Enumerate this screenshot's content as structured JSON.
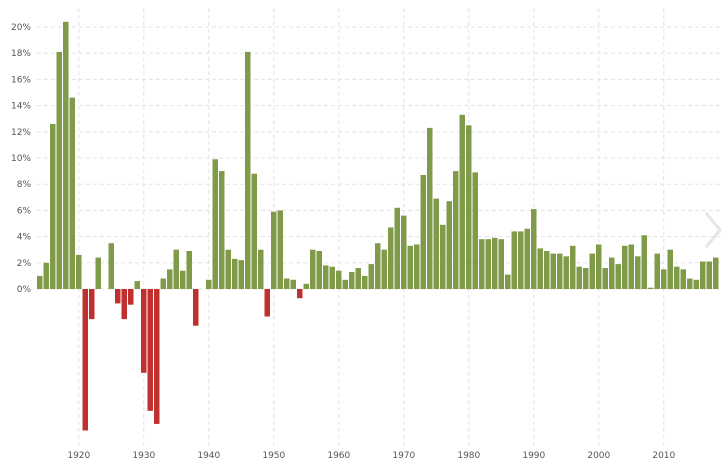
{
  "chart_data": {
    "type": "bar",
    "title": "",
    "xlabel": "",
    "ylabel": "",
    "x_start_year": 1914,
    "x": [
      1914,
      1915,
      1916,
      1917,
      1918,
      1919,
      1920,
      1921,
      1922,
      1923,
      1924,
      1925,
      1926,
      1927,
      1928,
      1929,
      1930,
      1931,
      1932,
      1933,
      1934,
      1935,
      1936,
      1937,
      1938,
      1939,
      1940,
      1941,
      1942,
      1943,
      1944,
      1945,
      1946,
      1947,
      1948,
      1949,
      1950,
      1951,
      1952,
      1953,
      1954,
      1955,
      1956,
      1957,
      1958,
      1959,
      1960,
      1961,
      1962,
      1963,
      1964,
      1965,
      1966,
      1967,
      1968,
      1969,
      1970,
      1971,
      1972,
      1973,
      1974,
      1975,
      1976,
      1977,
      1978,
      1979,
      1980,
      1981,
      1982,
      1983,
      1984,
      1985,
      1986,
      1987,
      1988,
      1989,
      1990,
      1991,
      1992,
      1993,
      1994,
      1995,
      1996,
      1997,
      1998,
      1999,
      2000,
      2001,
      2002,
      2003,
      2004,
      2005,
      2006,
      2007,
      2008,
      2009,
      2010,
      2011,
      2012,
      2013,
      2014,
      2015,
      2016,
      2017,
      2018
    ],
    "values": [
      1.0,
      2.0,
      12.6,
      18.1,
      20.4,
      14.6,
      2.6,
      -10.8,
      -2.3,
      2.4,
      0.0,
      3.5,
      -1.1,
      -2.3,
      -1.2,
      0.6,
      -6.4,
      -9.3,
      -10.3,
      0.8,
      1.5,
      3.0,
      1.4,
      2.9,
      -2.8,
      0.0,
      0.7,
      9.9,
      9.0,
      3.0,
      2.3,
      2.2,
      18.1,
      8.8,
      3.0,
      -2.1,
      5.9,
      6.0,
      0.8,
      0.7,
      -0.7,
      0.4,
      3.0,
      2.9,
      1.8,
      1.7,
      1.4,
      0.7,
      1.3,
      1.6,
      1.0,
      1.9,
      3.5,
      3.0,
      4.7,
      6.2,
      5.6,
      3.3,
      3.4,
      8.7,
      12.3,
      6.9,
      4.9,
      6.7,
      9.0,
      13.3,
      12.5,
      8.9,
      3.8,
      3.8,
      3.9,
      3.8,
      1.1,
      4.4,
      4.4,
      4.6,
      6.1,
      3.1,
      2.9,
      2.7,
      2.7,
      2.5,
      3.3,
      1.7,
      1.6,
      2.7,
      3.4,
      1.6,
      2.4,
      1.9,
      3.3,
      3.4,
      2.5,
      4.1,
      0.1,
      2.7,
      1.5,
      3.0,
      1.7,
      1.5,
      0.8,
      0.7,
      2.1,
      2.1,
      2.4
    ],
    "ylim": [
      -11,
      21
    ],
    "y_ticks": [
      0,
      2,
      4,
      6,
      8,
      10,
      12,
      14,
      16,
      18,
      20
    ],
    "y_tick_suffix": "%",
    "x_ticks": [
      1920,
      1930,
      1940,
      1950,
      1960,
      1970,
      1980,
      1990,
      2000,
      2010
    ],
    "grid": true,
    "legend": "none",
    "colors": {
      "positive": "#7f9a48",
      "negative": "#c0302f",
      "grid": "#e3e3e3",
      "tick_text": "#555555"
    }
  },
  "ui": {
    "next_arrow_icon": "chevron-right-icon"
  }
}
